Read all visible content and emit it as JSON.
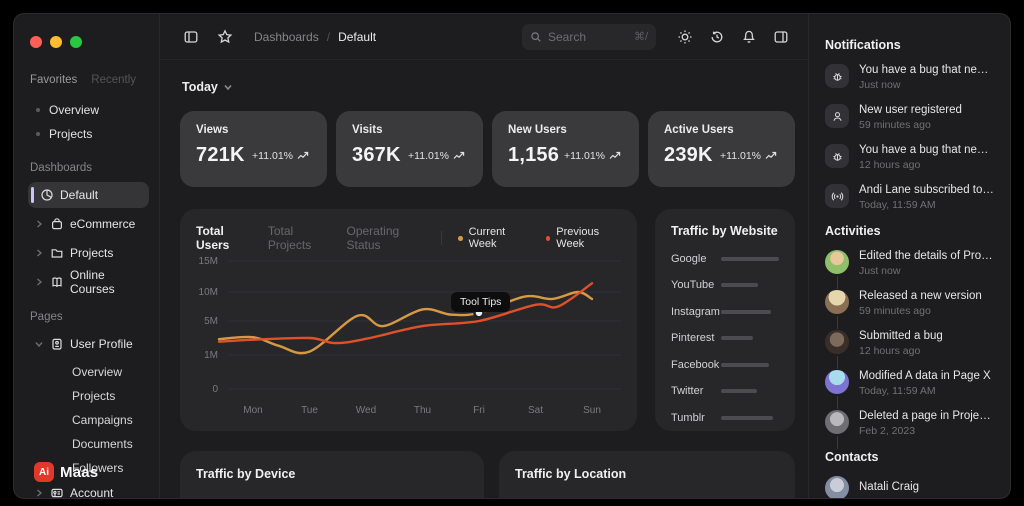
{
  "theme": {
    "accent": "#c6c7f8",
    "logo_red": "#e0392b",
    "current_week_color": "#d79a44",
    "previous_week_color": "#e0512a"
  },
  "sidebar": {
    "tabs": {
      "favorites": "Favorites",
      "recently": "Recently"
    },
    "favorites_items": [
      {
        "label": "Overview"
      },
      {
        "label": "Projects"
      }
    ],
    "sections": {
      "dashboards": {
        "title": "Dashboards",
        "items": [
          {
            "label": "Default",
            "icon": "pie-chart",
            "active": true
          },
          {
            "label": "eCommerce",
            "icon": "shopping-bag"
          },
          {
            "label": "Projects",
            "icon": "folder"
          },
          {
            "label": "Online Courses",
            "icon": "book"
          }
        ]
      },
      "pages": {
        "title": "Pages",
        "items": [
          {
            "label": "User Profile",
            "icon": "id-badge",
            "expanded": true,
            "children": [
              "Overview",
              "Projects",
              "Campaigns",
              "Documents",
              "Followers"
            ]
          },
          {
            "label": "Account",
            "icon": "id-card"
          }
        ]
      }
    },
    "logo": {
      "badge": "Ai",
      "text": "Maas"
    }
  },
  "header": {
    "breadcrumb": {
      "parent": "Dashboards",
      "separator": "/",
      "current": "Default"
    },
    "search": {
      "placeholder": "Search",
      "shortcut": "⌘/"
    }
  },
  "main": {
    "period": {
      "label": "Today"
    },
    "stats": [
      {
        "label": "Views",
        "value": "721K",
        "delta": "+11.01%"
      },
      {
        "label": "Visits",
        "value": "367K",
        "delta": "+11.01%"
      },
      {
        "label": "New Users",
        "value": "1,156",
        "delta": "+11.01%"
      },
      {
        "label": "Active Users",
        "value": "239K",
        "delta": "+11.01%"
      }
    ],
    "chart_panel": {
      "tabs": [
        {
          "label": "Total Users",
          "active": true
        },
        {
          "label": "Total Projects"
        },
        {
          "label": "Operating Status"
        }
      ],
      "tooltip_label": "Tool Tips"
    },
    "traffic_website": {
      "title": "Traffic by Website"
    },
    "bottom_panels": [
      {
        "title": "Traffic by Device"
      },
      {
        "title": "Traffic by Location"
      }
    ]
  },
  "right_panel": {
    "notifications": {
      "title": "Notifications",
      "items": [
        {
          "icon": "bug",
          "title": "You have a bug that needs t...",
          "time": "Just now"
        },
        {
          "icon": "user",
          "title": "New user registered",
          "time": "59 minutes ago"
        },
        {
          "icon": "bug",
          "title": "You have a bug that needs t...",
          "time": "12 hours ago"
        },
        {
          "icon": "broadcast",
          "title": "Andi Lane subscribed to you",
          "time": "Today, 11:59 AM"
        }
      ]
    },
    "activities": {
      "title": "Activities",
      "items": [
        {
          "title": "Edited the details of Project X",
          "time": "Just now"
        },
        {
          "title": "Released a new version",
          "time": "59 minutes ago"
        },
        {
          "title": "Submitted a bug",
          "time": "12 hours ago"
        },
        {
          "title": "Modified A data in Page X",
          "time": "Today, 11:59 AM"
        },
        {
          "title": "Deleted a page in Project X",
          "time": "Feb 2, 2023"
        }
      ]
    },
    "contacts": {
      "title": "Contacts",
      "items": [
        {
          "name": "Natali Craig"
        }
      ]
    }
  },
  "chart_data": [
    {
      "type": "line",
      "title": "Total Users",
      "x_labels": [
        "Mon",
        "Tue",
        "Wed",
        "Thu",
        "Fri",
        "Sat",
        "Sun"
      ],
      "y_ticks": [
        {
          "label": "15M",
          "value": 15
        },
        {
          "label": "10M",
          "value": 10
        },
        {
          "label": "5M",
          "value": 5
        },
        {
          "label": "1M",
          "value": 1
        },
        {
          "label": "0",
          "value": 0
        }
      ],
      "unit": "millions",
      "legend_position": "top-right",
      "grid": true,
      "series": [
        {
          "name": "Current Week",
          "color": "#d79a44",
          "points": [
            [
              0,
              3.1
            ],
            [
              0.45,
              2.1
            ],
            [
              1,
              1.4
            ],
            [
              1.85,
              5.9
            ],
            [
              2.3,
              4.4
            ],
            [
              3,
              7.0
            ],
            [
              3.5,
              6.1
            ],
            [
              4,
              6.4
            ],
            [
              4.8,
              9.2
            ],
            [
              5.3,
              8.8
            ],
            [
              5.75,
              10.0
            ],
            [
              6,
              8.8
            ]
          ]
        },
        {
          "name": "Previous Week",
          "color": "#e0512a",
          "points": [
            [
              0,
              2.8
            ],
            [
              1,
              3.0
            ],
            [
              1.45,
              2.4
            ],
            [
              2,
              2.9
            ],
            [
              3,
              4.4
            ],
            [
              4,
              5.0
            ],
            [
              5,
              7.8
            ],
            [
              5.4,
              7.5
            ],
            [
              6,
              11.4
            ]
          ]
        }
      ],
      "tooltip": {
        "label": "Tool Tips",
        "series": "Current Week",
        "x": 4,
        "value": 6.4
      }
    },
    {
      "type": "bar",
      "orientation": "horizontal",
      "title": "Traffic by Website",
      "categories": [
        "Google",
        "YouTube",
        "Instagram",
        "Pinterest",
        "Facebook",
        "Twitter",
        "Tumblr"
      ],
      "values_percent": [
        100,
        64,
        86,
        55,
        82,
        62,
        89
      ]
    }
  ]
}
